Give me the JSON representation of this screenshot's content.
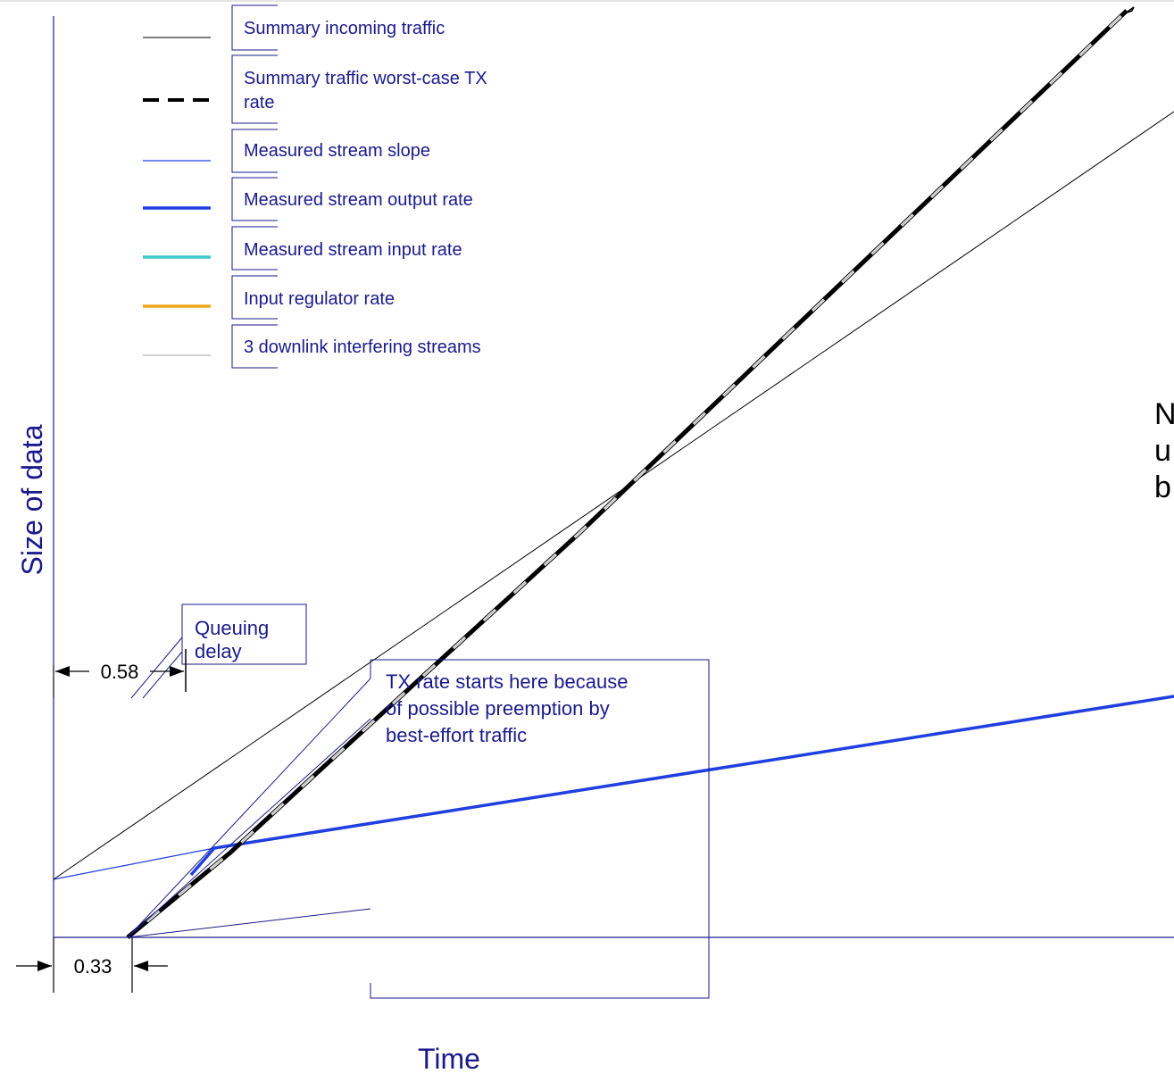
{
  "axes": {
    "x_label": "Time",
    "y_label": "Size of data"
  },
  "legend": [
    {
      "label_lines": [
        "Summary incoming traffic"
      ],
      "color": "#000000",
      "style": "solid-thin"
    },
    {
      "label_lines": [
        "Summary traffic worst-case TX",
        "rate"
      ],
      "color": "#000000",
      "style": "dashed-thick"
    },
    {
      "label_lines": [
        "Measured stream slope"
      ],
      "color": "#1f3fe0",
      "style": "solid-thin"
    },
    {
      "label_lines": [
        "Measured stream output rate"
      ],
      "color": "#1f3fe0",
      "style": "solid-thick"
    },
    {
      "label_lines": [
        "Measured stream input rate"
      ],
      "color": "#3fc8c8",
      "style": "solid-thick"
    },
    {
      "label_lines": [
        "Input regulator rate"
      ],
      "color": "#f0a818",
      "style": "solid-thick"
    },
    {
      "label_lines": [
        "3 downlink interfering streams"
      ],
      "color": "#c0c0c0",
      "style": "solid-thin"
    }
  ],
  "annotations": {
    "queuing_delay": [
      "Queuing",
      "delay"
    ],
    "tx_rate_note": [
      "TX rate starts here because",
      "of possible preemption by",
      "best-effort traffic"
    ],
    "dim_058": "0.58",
    "dim_033": "0.33",
    "cut_text": [
      "N",
      "u",
      "b"
    ]
  }
}
